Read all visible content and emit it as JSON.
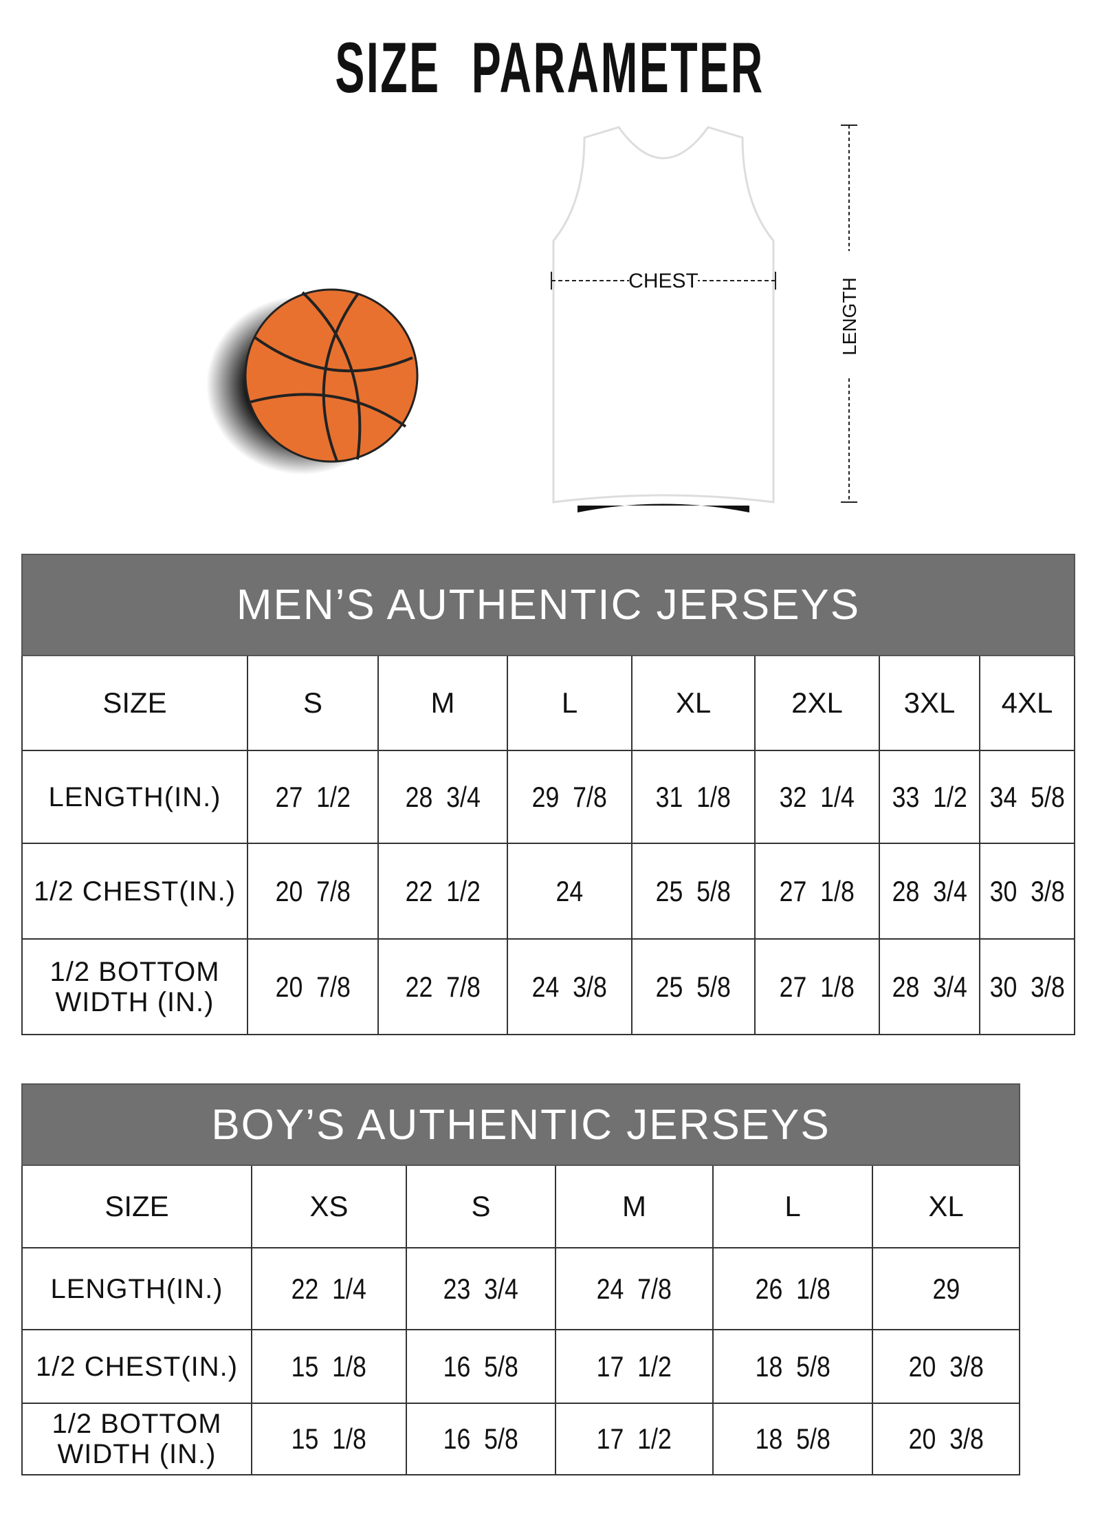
{
  "title": "SIZE PARAMETER",
  "illustration": {
    "chest_label": "CHEST",
    "length_label": "LENGTH",
    "ball_color": "#e8712f"
  },
  "colors": {
    "header_band": "#717171"
  },
  "men": {
    "title": "MEN’S AUTHENTIC JERSEYS",
    "header": [
      "SIZE",
      "S",
      "M",
      "L",
      "XL",
      "2XL",
      "3XL",
      "4XL"
    ],
    "rows": [
      [
        "LENGTH(IN.)",
        "27  1/2",
        "28  3/4",
        "29  7/8",
        "31  1/8",
        "32  1/4",
        "33  1/2",
        "34  5/8"
      ],
      [
        "1/2 CHEST(IN.)",
        "20  7/8",
        "22  1/2",
        "24",
        "25  5/8",
        "27  1/8",
        "28  3/4",
        "30  3/8"
      ],
      [
        "1/2 BOTTOM WIDTH  (IN.)",
        "20  7/8",
        "22  7/8",
        "24  3/8",
        "25  5/8",
        "27  1/8",
        "28  3/4",
        "30  3/8"
      ]
    ]
  },
  "boys": {
    "title": "BOY’S AUTHENTIC JERSEYS",
    "header": [
      "SIZE",
      "XS",
      "S",
      "M",
      "L",
      "XL"
    ],
    "rows": [
      [
        "LENGTH(IN.)",
        "22  1/4",
        "23  3/4",
        "24  7/8",
        "26  1/8",
        "29"
      ],
      [
        "1/2 CHEST(IN.)",
        "15  1/8",
        "16  5/8",
        "17  1/2",
        "18  5/8",
        "20  3/8"
      ],
      [
        "1/2 BOTTOM WIDTH  (IN.)",
        "15  1/8",
        "16  5/8",
        "17  1/2",
        "18  5/8",
        "20  3/8"
      ]
    ]
  }
}
